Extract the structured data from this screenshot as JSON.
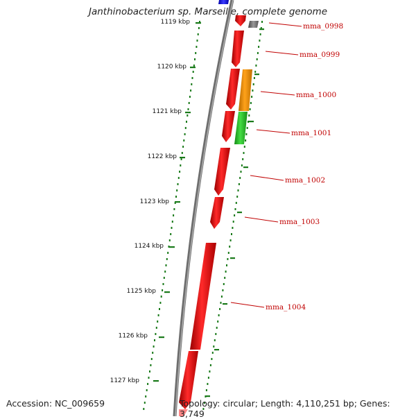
{
  "title": "Janthinobacterium sp. Marseille, complete genome",
  "footer": {
    "accession": "Accession: NC_009659",
    "summary": "Topology: circular; Length: 4,110,251 bp; Genes: 3,749"
  },
  "ticks": [
    "1119 kbp",
    "1120 kbp",
    "1121 kbp",
    "1122 kbp",
    "1123 kbp",
    "1124 kbp",
    "1125 kbp",
    "1126 kbp",
    "1127 kbp"
  ],
  "genes": [
    "mma_0998",
    "mma_0999",
    "mma_1000",
    "mma_1001",
    "mma_1002",
    "mma_1003",
    "mma_1004"
  ],
  "colors": {
    "backbone": "#808080",
    "cds": "#ee0000",
    "orange_feature": "#f59000",
    "green_feature": "#22bb22",
    "grey_feature": "#666666",
    "blue_feature": "#0000dd",
    "ruler": "#1a7a1a",
    "label": "#c00000"
  }
}
